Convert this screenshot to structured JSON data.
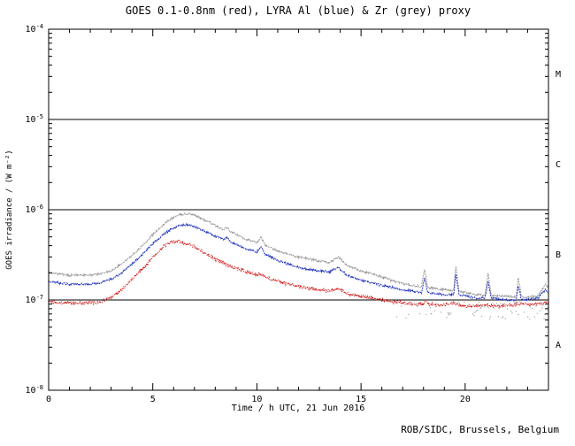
{
  "chart_data": {
    "type": "line",
    "title": "GOES 0.1-0.8nm (red), LYRA Al (blue) & Zr (grey) proxy",
    "xlabel": "Time / h UTC, 21 Jun 2016",
    "ylabel": "GOES irradiance / (W m⁻²)",
    "credit": "ROB/SIDC, Brussels, Belgium",
    "xlim": [
      0,
      24
    ],
    "x_major_ticks": [
      0,
      5,
      10,
      15,
      20
    ],
    "x_minor_step": 1,
    "log_ylim": [
      -8,
      -4
    ],
    "y_tick_exponents": [
      -4,
      -5,
      -6,
      -7,
      -8
    ],
    "class_line_exponents": [
      -5,
      -6,
      -7
    ],
    "flare_classes": [
      {
        "label": "M",
        "log_mid": -4.5
      },
      {
        "label": "C",
        "log_mid": -5.5
      },
      {
        "label": "B",
        "log_mid": -6.5
      },
      {
        "label": "A",
        "log_mid": -7.5
      }
    ],
    "grid": false,
    "legend": "none",
    "colors": {
      "goes": "#cc0000",
      "lyra_al": "#2233bb",
      "lyra_zr": "#999999",
      "axis": "#000000"
    },
    "series": [
      {
        "id": "lyra-zr-proxy",
        "name": "LYRA Zr (grey) proxy",
        "color": "#999999",
        "noise": 0.011,
        "dash": "2,1",
        "points": [
          [
            0,
            2e-07
          ],
          [
            0.5,
            1.95e-07
          ],
          [
            1,
            1.88e-07
          ],
          [
            1.5,
            1.9e-07
          ],
          [
            2,
            1.88e-07
          ],
          [
            2.5,
            1.95e-07
          ],
          [
            3,
            2.1e-07
          ],
          [
            3.5,
            2.5e-07
          ],
          [
            4,
            3.1e-07
          ],
          [
            4.5,
            4e-07
          ],
          [
            5,
            5.3e-07
          ],
          [
            5.5,
            6.8e-07
          ],
          [
            6,
            8.3e-07
          ],
          [
            6.4,
            8.9e-07
          ],
          [
            6.8,
            9e-07
          ],
          [
            7,
            8.7e-07
          ],
          [
            7.5,
            7.7e-07
          ],
          [
            8,
            6.7e-07
          ],
          [
            8.4,
            6e-07
          ],
          [
            8.55,
            6.4e-07
          ],
          [
            8.7,
            5.8e-07
          ],
          [
            9,
            5.3e-07
          ],
          [
            9.5,
            4.7e-07
          ],
          [
            10,
            4.3e-07
          ],
          [
            10.2,
            5e-07
          ],
          [
            10.4,
            4e-07
          ],
          [
            11,
            3.5e-07
          ],
          [
            11.5,
            3.2e-07
          ],
          [
            12,
            3e-07
          ],
          [
            12.5,
            2.85e-07
          ],
          [
            13,
            2.7e-07
          ],
          [
            13.5,
            2.6e-07
          ],
          [
            13.9,
            3e-07
          ],
          [
            14.3,
            2.45e-07
          ],
          [
            15,
            2.1e-07
          ],
          [
            15.5,
            1.95e-07
          ],
          [
            16,
            1.8e-07
          ],
          [
            16.5,
            1.65e-07
          ],
          [
            17,
            1.52e-07
          ],
          [
            17.5,
            1.45e-07
          ],
          [
            17.9,
            1.4e-07
          ],
          [
            18.05,
            2.25e-07
          ],
          [
            18.2,
            1.38e-07
          ],
          [
            19,
            1.3e-07
          ],
          [
            19.45,
            1.28e-07
          ],
          [
            19.55,
            2.4e-07
          ],
          [
            19.7,
            1.25e-07
          ],
          [
            20.5,
            1.15e-07
          ],
          [
            20.95,
            1.13e-07
          ],
          [
            21.1,
            2e-07
          ],
          [
            21.25,
            1.12e-07
          ],
          [
            22,
            1.1e-07
          ],
          [
            22.45,
            1.08e-07
          ],
          [
            22.55,
            1.8e-07
          ],
          [
            22.7,
            1.08e-07
          ],
          [
            23.5,
            1.1e-07
          ],
          [
            23.85,
            1.5e-07
          ],
          [
            24,
            1.35e-07
          ]
        ]
      },
      {
        "id": "lyra-al-proxy",
        "name": "LYRA Al (blue) proxy",
        "color": "#2233bb",
        "noise": 0.011,
        "dash": "2,1",
        "points": [
          [
            0,
            1.6e-07
          ],
          [
            0.5,
            1.55e-07
          ],
          [
            1,
            1.5e-07
          ],
          [
            1.5,
            1.5e-07
          ],
          [
            2,
            1.5e-07
          ],
          [
            2.5,
            1.55e-07
          ],
          [
            3,
            1.7e-07
          ],
          [
            3.5,
            2e-07
          ],
          [
            4,
            2.5e-07
          ],
          [
            4.5,
            3.2e-07
          ],
          [
            5,
            4.2e-07
          ],
          [
            5.5,
            5.3e-07
          ],
          [
            6,
            6.3e-07
          ],
          [
            6.4,
            6.8e-07
          ],
          [
            6.8,
            6.7e-07
          ],
          [
            7,
            6.5e-07
          ],
          [
            7.5,
            5.8e-07
          ],
          [
            8,
            5.1e-07
          ],
          [
            8.4,
            4.7e-07
          ],
          [
            8.55,
            5e-07
          ],
          [
            8.7,
            4.5e-07
          ],
          [
            9,
            4.1e-07
          ],
          [
            9.5,
            3.7e-07
          ],
          [
            10,
            3.4e-07
          ],
          [
            10.2,
            3.9e-07
          ],
          [
            10.4,
            3.2e-07
          ],
          [
            11,
            2.75e-07
          ],
          [
            11.5,
            2.5e-07
          ],
          [
            12,
            2.3e-07
          ],
          [
            12.5,
            2.2e-07
          ],
          [
            13,
            2.1e-07
          ],
          [
            13.5,
            2.05e-07
          ],
          [
            13.9,
            2.3e-07
          ],
          [
            14.3,
            1.9e-07
          ],
          [
            15,
            1.65e-07
          ],
          [
            15.5,
            1.55e-07
          ],
          [
            16,
            1.45e-07
          ],
          [
            16.5,
            1.38e-07
          ],
          [
            17,
            1.3e-07
          ],
          [
            17.5,
            1.25e-07
          ],
          [
            17.9,
            1.2e-07
          ],
          [
            18.05,
            1.75e-07
          ],
          [
            18.2,
            1.2e-07
          ],
          [
            19,
            1.15e-07
          ],
          [
            19.45,
            1.15e-07
          ],
          [
            19.55,
            1.95e-07
          ],
          [
            19.7,
            1.15e-07
          ],
          [
            20.5,
            1.05e-07
          ],
          [
            20.95,
            1.05e-07
          ],
          [
            21.1,
            1.6e-07
          ],
          [
            21.25,
            1.05e-07
          ],
          [
            22,
            1e-07
          ],
          [
            22.45,
            1e-07
          ],
          [
            22.55,
            1.45e-07
          ],
          [
            22.7,
            1e-07
          ],
          [
            23.5,
            1.05e-07
          ],
          [
            23.85,
            1.3e-07
          ],
          [
            24,
            1.2e-07
          ]
        ]
      },
      {
        "id": "goes-xray",
        "name": "GOES 0.1-0.8nm (red)",
        "color": "#cc0000",
        "noise": 0.018,
        "dash": "1,1.4",
        "points": [
          [
            0,
            9.5e-08
          ],
          [
            0.5,
            9.4e-08
          ],
          [
            1,
            9.3e-08
          ],
          [
            1.5,
            9.2e-08
          ],
          [
            2,
            9.3e-08
          ],
          [
            2.5,
            9.6e-08
          ],
          [
            3,
            1.05e-07
          ],
          [
            3.5,
            1.3e-07
          ],
          [
            4,
            1.7e-07
          ],
          [
            4.5,
            2.2e-07
          ],
          [
            5,
            3e-07
          ],
          [
            5.5,
            3.9e-07
          ],
          [
            5.9,
            4.4e-07
          ],
          [
            6.2,
            4.45e-07
          ],
          [
            6.6,
            4.2e-07
          ],
          [
            7,
            3.9e-07
          ],
          [
            7.5,
            3.3e-07
          ],
          [
            8,
            2.85e-07
          ],
          [
            8.5,
            2.5e-07
          ],
          [
            9,
            2.25e-07
          ],
          [
            9.5,
            2.05e-07
          ],
          [
            10,
            1.9e-07
          ],
          [
            10.2,
            1.95e-07
          ],
          [
            10.5,
            1.75e-07
          ],
          [
            11,
            1.62e-07
          ],
          [
            11.5,
            1.5e-07
          ],
          [
            12,
            1.42e-07
          ],
          [
            12.5,
            1.35e-07
          ],
          [
            13,
            1.3e-07
          ],
          [
            13.5,
            1.26e-07
          ],
          [
            13.9,
            1.35e-07
          ],
          [
            14.3,
            1.18e-07
          ],
          [
            15,
            1.1e-07
          ],
          [
            15.5,
            1.05e-07
          ],
          [
            16,
            1e-07
          ],
          [
            16.5,
            9.6e-08
          ],
          [
            17,
            9.3e-08
          ],
          [
            17.5,
            9.1e-08
          ],
          [
            18,
            9e-08
          ],
          [
            18.1,
            9.6e-08
          ],
          [
            18.3,
            8.9e-08
          ],
          [
            19,
            8.7e-08
          ],
          [
            19.5,
            9.3e-08
          ],
          [
            19.8,
            8.6e-08
          ],
          [
            20.3,
            8.5e-08
          ],
          [
            21,
            8.8e-08
          ],
          [
            21.5,
            8.5e-08
          ],
          [
            22,
            8.6e-08
          ],
          [
            22.5,
            9e-08
          ],
          [
            23,
            8.8e-08
          ],
          [
            23.5,
            9e-08
          ],
          [
            24,
            9.5e-08
          ]
        ]
      }
    ],
    "scatter": {
      "id": "zr-low-scatter",
      "color": "#aaaaaa",
      "from": 16.5,
      "to": 24,
      "log_min": -7.22,
      "log_max": -7.02,
      "density": 0.28,
      "step": 0.03
    }
  },
  "layout_colors": {
    "background": "#ffffff",
    "frame": "#000000"
  }
}
